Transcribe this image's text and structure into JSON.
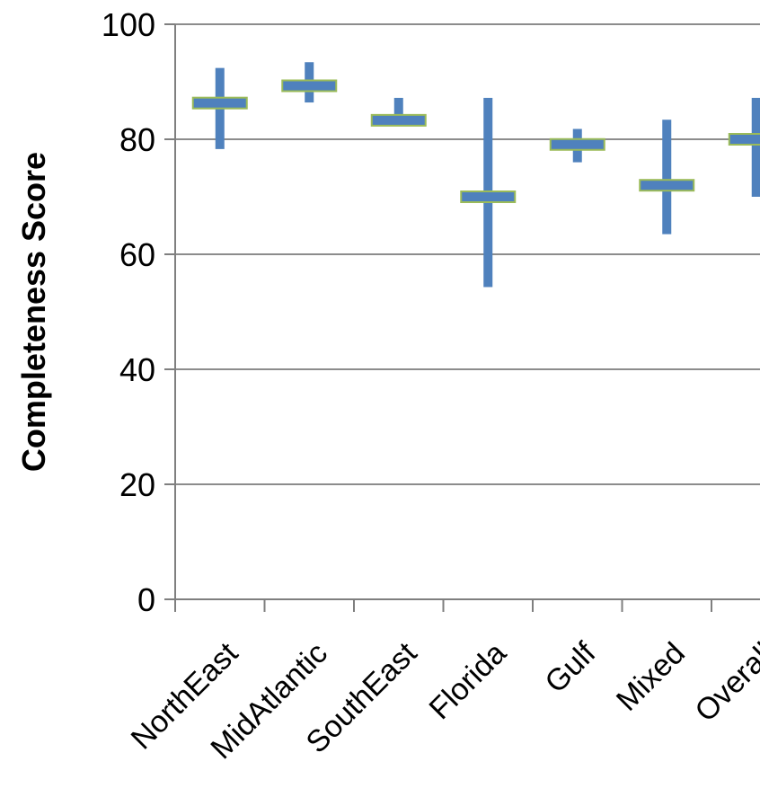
{
  "chart_data": {
    "type": "bar",
    "title": "",
    "xlabel": "",
    "ylabel": "Completeness Score",
    "ylim": [
      0,
      100
    ],
    "yticks": [
      0,
      20,
      40,
      60,
      80,
      100
    ],
    "grid": true,
    "legend": "none",
    "categories": [
      "NorthEast",
      "MidAtlantic",
      "SouthEast",
      "Florida",
      "Gulf",
      "Mixed",
      "Overall"
    ],
    "series": [
      {
        "name": "",
        "kind": "range",
        "low": [
          78.3,
          86.4,
          83.0,
          54.3,
          76.0,
          63.5,
          70.0
        ],
        "high": [
          92.4,
          93.4,
          87.2,
          87.2,
          81.8,
          83.4,
          87.2
        ]
      },
      {
        "name": "",
        "kind": "mean",
        "values": [
          86.3,
          89.3,
          83.3,
          70.0,
          79.1,
          72.0,
          80.0
        ]
      }
    ],
    "colors": {
      "range": "#4f81bd",
      "mean_fill": "#4f81bd",
      "mean_border": "#9bbb59",
      "grid": "#8c8c8c",
      "axis": "#7f7f7f"
    }
  }
}
